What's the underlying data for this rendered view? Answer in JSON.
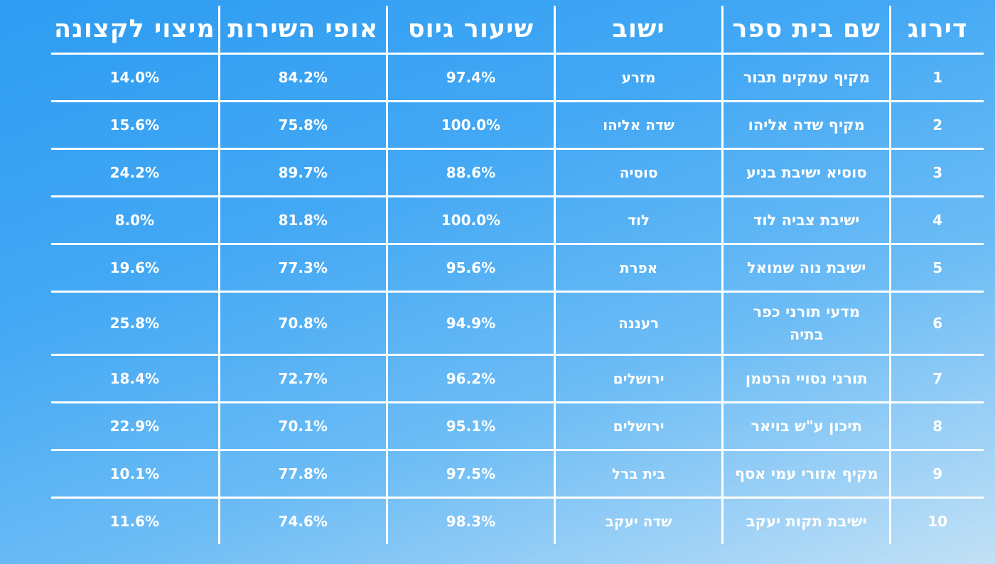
{
  "table": {
    "headers": {
      "rank": "דירוג",
      "school": "שם בית ספר",
      "city": "ישוב",
      "enlistment": "שיעור גיוס",
      "service": "אופי השירות",
      "excellence": "מיצוי לקצונה"
    },
    "rows": [
      {
        "rank": "1",
        "school": "מקיף עמקים תבור",
        "city": "מזרע",
        "enlistment": "97.4%",
        "service": "84.2%",
        "excellence": "14.0%"
      },
      {
        "rank": "2",
        "school": "מקיף שדה אליהו",
        "city": "שדה אליהו",
        "enlistment": "100.0%",
        "service": "75.8%",
        "excellence": "15.6%"
      },
      {
        "rank": "3",
        "school": "סוסיא ישיבת בניע",
        "city": "סוסיה",
        "enlistment": "88.6%",
        "service": "89.7%",
        "excellence": "24.2%"
      },
      {
        "rank": "4",
        "school": "ישיבת צביה לוד",
        "city": "לוד",
        "enlistment": "100.0%",
        "service": "81.8%",
        "excellence": "8.0%"
      },
      {
        "rank": "5",
        "school": "ישיבת נוה שמואל",
        "city": "אפרת",
        "enlistment": "95.6%",
        "service": "77.3%",
        "excellence": "19.6%"
      },
      {
        "rank": "6",
        "school": "מדעי תורני כפר בתיה",
        "city": "רעננה",
        "enlistment": "94.9%",
        "service": "70.8%",
        "excellence": "25.8%"
      },
      {
        "rank": "7",
        "school": "תורני נסויי הרטמן",
        "city": "ירושלים",
        "enlistment": "96.2%",
        "service": "72.7%",
        "excellence": "18.4%"
      },
      {
        "rank": "8",
        "school": "תיכון ע\"ש בויאר",
        "city": "ירושלים",
        "enlistment": "95.1%",
        "service": "70.1%",
        "excellence": "22.9%"
      },
      {
        "rank": "9",
        "school": "מקיף אזורי עמי אסף",
        "city": "בית ברל",
        "enlistment": "97.5%",
        "service": "77.8%",
        "excellence": "10.1%"
      },
      {
        "rank": "10",
        "school": "ישיבת תקות יעקב",
        "city": "שדה יעקב",
        "enlistment": "98.3%",
        "service": "74.6%",
        "excellence": "11.6%"
      }
    ]
  }
}
